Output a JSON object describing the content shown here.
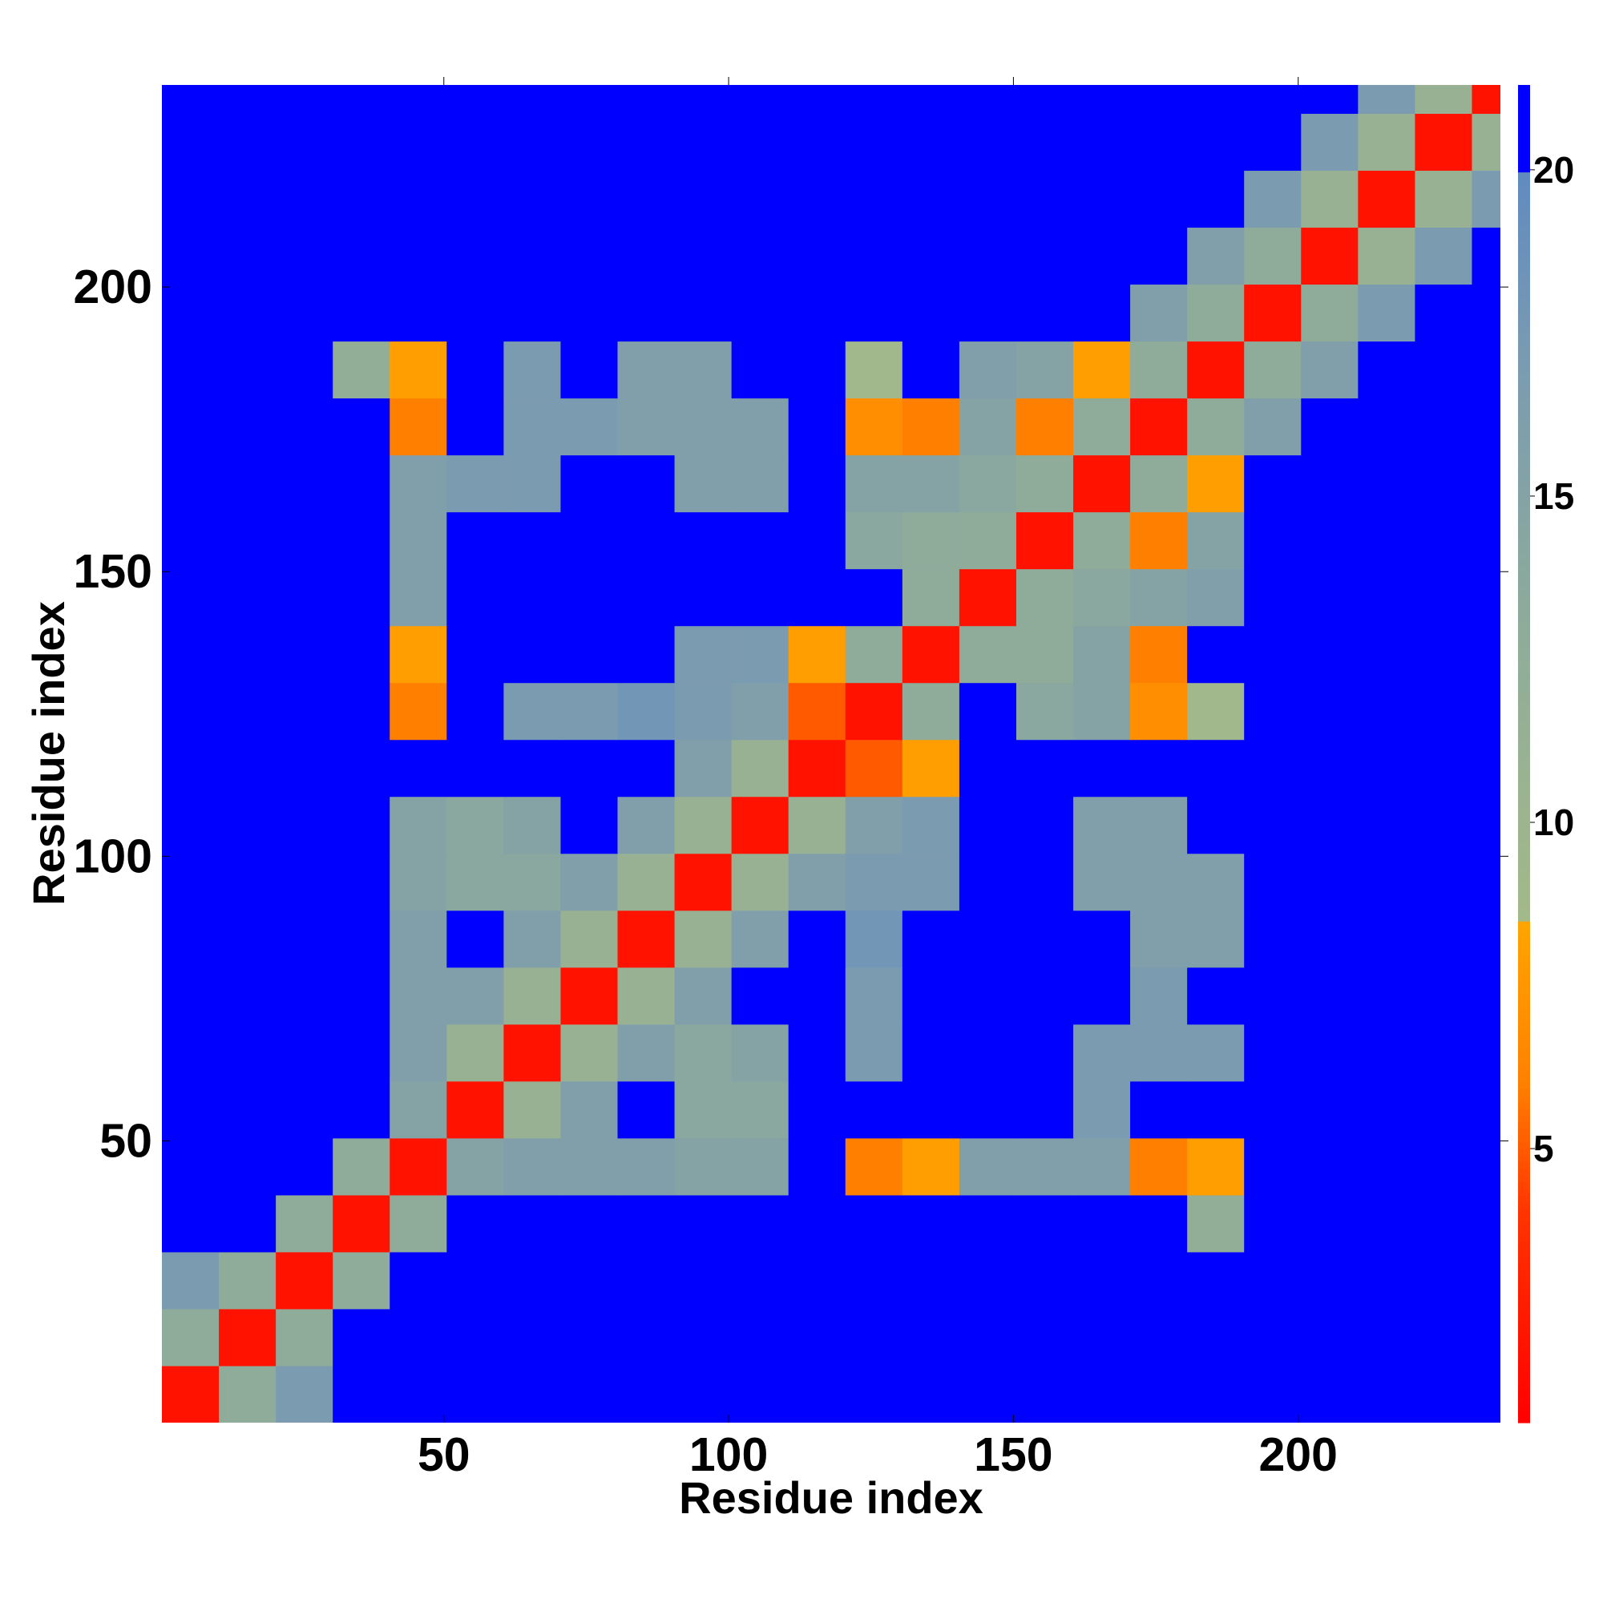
{
  "chart_data": {
    "type": "heatmap",
    "x_label": "Residue index",
    "y_label": "Residue index",
    "xlim": [
      0.5,
      235.5
    ],
    "ylim": [
      0.5,
      235.5
    ],
    "xticks": [
      50,
      100,
      150,
      200
    ],
    "yticks": [
      50,
      100,
      150,
      200
    ],
    "xbins": [
      0.5,
      10.5,
      20.5,
      30.5,
      40.5,
      50.5,
      60.5,
      70.5,
      80.5,
      90.5,
      100.5,
      110.5,
      120.5,
      130.5,
      140.5,
      150.5,
      160.5,
      170.5,
      180.5,
      190.5,
      200.5,
      210.5,
      220.5,
      230.5,
      235.5
    ],
    "ybins": [
      0.5,
      10.5,
      20.5,
      30.5,
      40.5,
      50.5,
      60.5,
      70.5,
      80.5,
      90.5,
      100.5,
      110.5,
      120.5,
      130.5,
      140.5,
      150.5,
      160.5,
      170.5,
      180.5,
      190.5,
      200.5,
      210.5,
      220.5,
      230.5,
      235.5
    ],
    "z": [
      [
        2,
        13,
        17,
        21,
        21,
        21,
        21,
        21,
        21,
        21,
        21,
        21,
        21,
        21,
        21,
        21,
        21,
        21,
        21,
        21,
        21,
        21,
        21,
        21
      ],
      [
        13,
        2,
        13,
        21,
        21,
        21,
        21,
        21,
        21,
        21,
        21,
        21,
        21,
        21,
        21,
        21,
        21,
        21,
        21,
        21,
        21,
        21,
        21,
        21
      ],
      [
        17,
        13,
        2,
        13,
        21,
        21,
        21,
        21,
        21,
        21,
        21,
        21,
        21,
        21,
        21,
        21,
        21,
        21,
        21,
        21,
        21,
        21,
        21,
        21
      ],
      [
        21,
        21,
        13,
        2,
        13,
        21,
        21,
        21,
        21,
        21,
        21,
        21,
        21,
        21,
        21,
        21,
        21,
        21,
        12,
        21,
        21,
        21,
        21,
        21
      ],
      [
        21,
        21,
        21,
        13,
        2,
        15,
        16,
        16,
        16,
        15,
        15,
        21,
        6,
        8,
        16,
        16,
        16,
        6,
        8,
        21,
        21,
        21,
        21,
        21
      ],
      [
        21,
        21,
        21,
        21,
        15,
        2,
        11,
        16,
        21,
        14,
        14,
        21,
        21,
        21,
        21,
        21,
        17,
        21,
        21,
        21,
        21,
        21,
        21,
        21
      ],
      [
        21,
        21,
        21,
        21,
        16,
        11,
        2,
        11,
        16,
        14,
        15,
        21,
        17,
        21,
        21,
        21,
        17,
        17,
        17,
        21,
        21,
        21,
        21,
        21
      ],
      [
        21,
        21,
        21,
        21,
        16,
        16,
        11,
        2,
        11,
        16,
        21,
        21,
        17,
        21,
        21,
        21,
        21,
        17,
        21,
        21,
        21,
        21,
        21,
        21
      ],
      [
        21,
        21,
        21,
        21,
        16,
        21,
        16,
        11,
        2,
        11,
        16,
        21,
        18,
        21,
        21,
        21,
        21,
        16,
        16,
        21,
        21,
        21,
        21,
        21
      ],
      [
        21,
        21,
        21,
        21,
        15,
        14,
        14,
        16,
        11,
        2,
        11,
        16,
        17,
        17,
        21,
        21,
        16,
        16,
        16,
        21,
        21,
        21,
        21,
        21
      ],
      [
        21,
        21,
        21,
        21,
        15,
        14,
        15,
        21,
        16,
        11,
        2,
        11,
        16,
        17,
        21,
        21,
        16,
        16,
        21,
        21,
        21,
        21,
        21,
        21
      ],
      [
        21,
        21,
        21,
        21,
        21,
        21,
        21,
        21,
        21,
        16,
        11,
        2,
        5,
        8,
        21,
        21,
        21,
        21,
        21,
        21,
        21,
        21,
        21,
        21
      ],
      [
        21,
        21,
        21,
        21,
        6,
        21,
        17,
        17,
        18,
        17,
        16,
        5,
        2,
        13,
        21,
        14,
        15,
        7,
        9,
        21,
        21,
        21,
        21,
        21
      ],
      [
        21,
        21,
        21,
        21,
        8,
        21,
        21,
        21,
        21,
        17,
        17,
        8,
        13,
        2,
        13,
        13,
        15,
        6,
        21,
        21,
        21,
        21,
        21,
        21
      ],
      [
        21,
        21,
        21,
        21,
        16,
        21,
        21,
        21,
        21,
        21,
        21,
        21,
        21,
        13,
        2,
        13,
        14,
        15,
        16,
        21,
        21,
        21,
        21,
        21
      ],
      [
        21,
        21,
        21,
        21,
        16,
        21,
        21,
        21,
        21,
        21,
        21,
        21,
        14,
        13,
        13,
        2,
        13,
        6,
        15,
        21,
        21,
        21,
        21,
        21
      ],
      [
        21,
        21,
        21,
        21,
        16,
        17,
        17,
        21,
        21,
        16,
        16,
        21,
        15,
        15,
        14,
        13,
        2,
        13,
        8,
        21,
        21,
        21,
        21,
        21
      ],
      [
        21,
        21,
        21,
        21,
        6,
        21,
        17,
        17,
        16,
        16,
        16,
        21,
        7,
        6,
        15,
        6,
        13,
        2,
        13,
        16,
        21,
        21,
        21,
        21
      ],
      [
        21,
        21,
        21,
        12,
        8,
        21,
        17,
        21,
        16,
        16,
        21,
        21,
        9,
        21,
        16,
        15,
        8,
        13,
        2,
        13,
        16,
        21,
        21,
        21
      ],
      [
        21,
        21,
        21,
        21,
        21,
        21,
        21,
        21,
        21,
        21,
        21,
        21,
        21,
        21,
        21,
        21,
        21,
        16,
        13,
        2,
        13,
        17,
        21,
        21
      ],
      [
        21,
        21,
        21,
        21,
        21,
        21,
        21,
        21,
        21,
        21,
        21,
        21,
        21,
        21,
        21,
        21,
        21,
        21,
        16,
        13,
        2,
        11,
        17,
        21
      ],
      [
        21,
        21,
        21,
        21,
        21,
        21,
        21,
        21,
        21,
        21,
        21,
        21,
        21,
        21,
        21,
        21,
        21,
        21,
        21,
        17,
        11,
        2,
        11,
        17
      ],
      [
        21,
        21,
        21,
        21,
        21,
        21,
        21,
        21,
        21,
        21,
        21,
        21,
        21,
        21,
        21,
        21,
        21,
        21,
        21,
        21,
        17,
        11,
        2,
        11
      ],
      [
        21,
        21,
        21,
        21,
        21,
        21,
        21,
        21,
        21,
        21,
        21,
        21,
        21,
        21,
        21,
        21,
        21,
        21,
        21,
        21,
        21,
        17,
        11,
        2
      ]
    ],
    "background_color": "#0000ff",
    "clim": [
      0.8,
      21.3
    ],
    "cticks": [
      5,
      10,
      15,
      20
    ],
    "colorscale": [
      {
        "value": 0.8,
        "color": "#ff0000"
      },
      {
        "value": 4,
        "color": "#ff3300"
      },
      {
        "value": 6,
        "color": "#ff8000"
      },
      {
        "value": 8.5,
        "color": "#ffa500"
      },
      {
        "value": 8.5,
        "color": "#a3b98a"
      },
      {
        "value": 13,
        "color": "#8fab9a"
      },
      {
        "value": 17,
        "color": "#7b9bb0"
      },
      {
        "value": 20,
        "color": "#5f8bc0"
      },
      {
        "value": 20,
        "color": "#0000ff"
      },
      {
        "value": 21.3,
        "color": "#0000ff"
      }
    ]
  }
}
